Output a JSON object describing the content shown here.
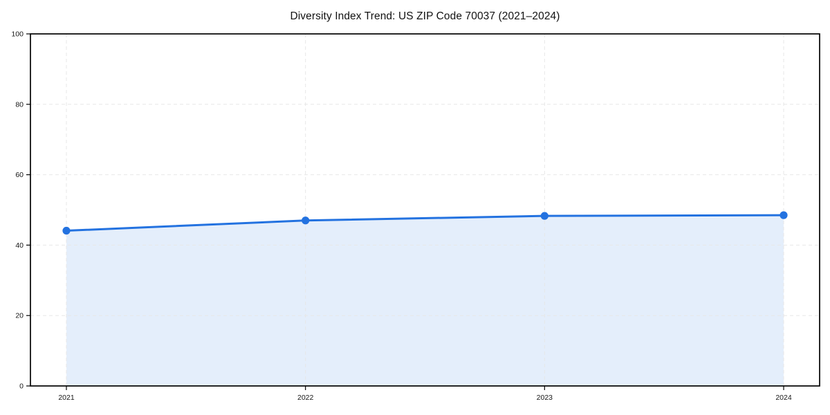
{
  "chart_data": {
    "type": "line",
    "title": "Diversity Index Trend: US ZIP Code 70037 (2021–2024)",
    "categories": [
      "2021",
      "2022",
      "2023",
      "2024"
    ],
    "series": [
      {
        "name": "Diversity Index",
        "values": [
          44.1,
          47.0,
          48.3,
          48.5
        ]
      }
    ],
    "xlabel": "",
    "ylabel": "",
    "ylim": [
      0,
      100
    ],
    "yticks": [
      0,
      20,
      40,
      60,
      80,
      100
    ],
    "grid": "dashed both axes",
    "legend_position": "none",
    "area_fill": true,
    "marker": "circle",
    "colors": {
      "line": "#2372e0",
      "marker": "#2372e0",
      "area_fill": "rgba(35, 114, 224, 0.12)",
      "grid": "#e7e7e7",
      "axis_frame": "#000000",
      "tick_text": "#151515",
      "title_text": "#111111",
      "background": "#ffffff"
    }
  }
}
